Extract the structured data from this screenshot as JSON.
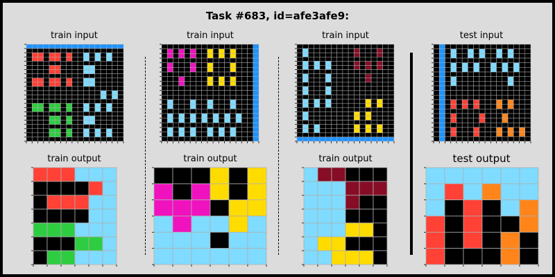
{
  "title": "Task #683, id=afe3afe9:",
  "labels": {
    "train_input": "train input",
    "train_output": "train output",
    "test_input": "test input",
    "test_output": "test output"
  },
  "colors": {
    "0": "#000000",
    "1": "#1e93ff",
    "2": "#ff4136",
    "3": "#2ecc40",
    "4": "#ffdc00",
    "5": "#aaaaaa",
    "6": "#f012be",
    "7": "#ff851b",
    "8": "#7fdbff",
    "9": "#870c25",
    "gridline": "#b0b0b0"
  },
  "pairs": [
    {
      "input": [
        "11111111111111111",
        "00000000000000000",
        "02202202008080800",
        "02202202008080800",
        "00000000000000000",
        "00002200008800000",
        "00002200008800000",
        "00000000000000000",
        "02202202008800000",
        "02202202008800000",
        "00000000000000000",
        "00000000000008080",
        "00000000000008080",
        "00000000000000000",
        "03303303008080800",
        "03303303008080800",
        "00000000000000000",
        "00003303008800000",
        "00003303008800000",
        "00000000000000000",
        "00003303008080800",
        "00003303008080800",
        "00000000000000000"
      ],
      "output": [
        "222888",
        "000028",
        "022288",
        "000088",
        "333888",
        "000338",
        "033888"
      ]
    },
    {
      "input": [
        "00000000000000001",
        "06060600404040001",
        "06060600404040001",
        "00000000000000001",
        "06000600400040001",
        "06000600400040001",
        "00000000000000001",
        "00060000404040001",
        "00060000404040001",
        "00000000000000001",
        "00000000000000001",
        "00000000000000001",
        "08000800800080001",
        "08000800800080001",
        "00000000000000001",
        "08080808080808001",
        "08080808080808001",
        "00000000000000001",
        "08080800808080001",
        "08080800808080001",
        "00000000000000001"
      ],
      "output": [
        "000404",
        "606404",
        "666044",
        "868848",
        "888088",
        "888888"
      ]
    },
    {
      "input": [
        "00000000000000000",
        "08000000009000900",
        "08000000009000900",
        "00000000000000000",
        "08080800009090900",
        "08080800009090900",
        "00000000000000000",
        "08000800000090000",
        "08000800000090000",
        "00000000000000000",
        "08000800000000000",
        "08000800000000000",
        "00000000000000000",
        "08080800000040400",
        "08080800000040400",
        "00000000000000000",
        "08000000004040000",
        "08000000004040000",
        "00000000000000000",
        "08080000004040400",
        "08080000004040400",
        "00000000000000000",
        "11111111111111111"
      ],
      "output": [
        "899000",
        "888999",
        "888900",
        "888000",
        "888440",
        "844000",
        "884440"
      ]
    }
  ],
  "test": {
    "input": [
      "01000000000000000",
      "01080080800808000",
      "01080080800808000",
      "01000000000000000",
      "01080808008080800",
      "01080808008080800",
      "01000000000000000",
      "01080000000008000",
      "01080000000008000",
      "01000000000000000",
      "01000000000000000",
      "01000000000000000",
      "01020202000707000",
      "01020202000707000",
      "01000000000000000",
      "01020000200070000",
      "01020000200070000",
      "01000000000000000",
      "01020002000707070",
      "01020002000707070",
      "01000000000000000"
    ],
    "output": [
      "888888",
      "828788",
      "802087",
      "202007",
      "202070",
      "200070"
    ]
  }
}
